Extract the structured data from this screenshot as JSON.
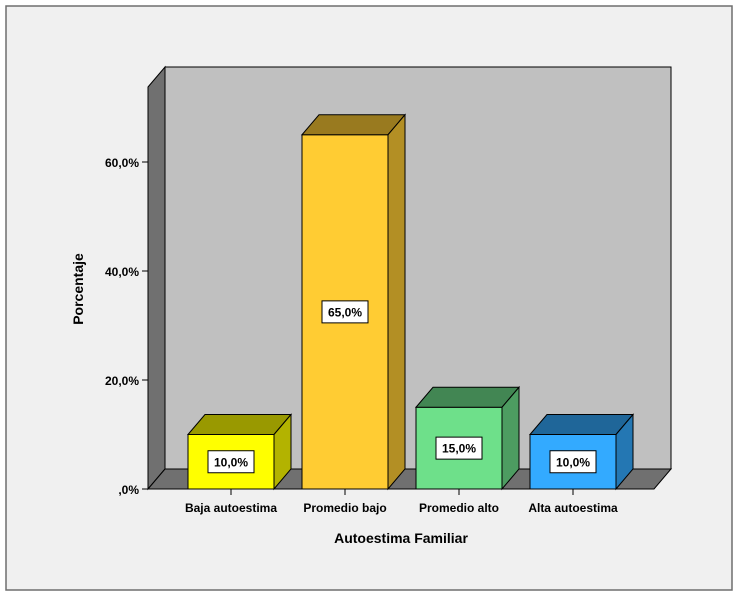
{
  "chart_data": {
    "type": "bar",
    "xlabel": "Autoestima Familiar",
    "ylabel": "Porcentaje",
    "ylim": [
      0,
      70
    ],
    "yticks": [
      {
        "value": 0,
        "label": ",0%"
      },
      {
        "value": 20,
        "label": "20,0%"
      },
      {
        "value": 40,
        "label": "40,0%"
      },
      {
        "value": 60,
        "label": "60,0%"
      }
    ],
    "categories": [
      "Baja autoestima",
      "Promedio bajo",
      "Promedio alto",
      "Alta autoestima"
    ],
    "values": [
      10,
      65,
      15,
      10
    ],
    "data_labels": [
      "10,0%",
      "65,0%",
      "15,0%",
      "10,0%"
    ],
    "bar_colors": [
      {
        "front": "#ffff00",
        "top": "#999900",
        "side": "#b3b300"
      },
      {
        "front": "#ffcc33",
        "top": "#997a1f",
        "side": "#b38f24"
      },
      {
        "front": "#6ee08a",
        "top": "#428653",
        "side": "#4d9c61"
      },
      {
        "front": "#33aaff",
        "top": "#1f6699",
        "side": "#2477b3"
      }
    ],
    "style": {
      "outer_background": "#f0f0f0",
      "plot_back_wall": "#c0c0c0",
      "left_wall": "#707070",
      "floor": "#707070"
    },
    "grid": false,
    "legend": "none",
    "three_d": true
  }
}
